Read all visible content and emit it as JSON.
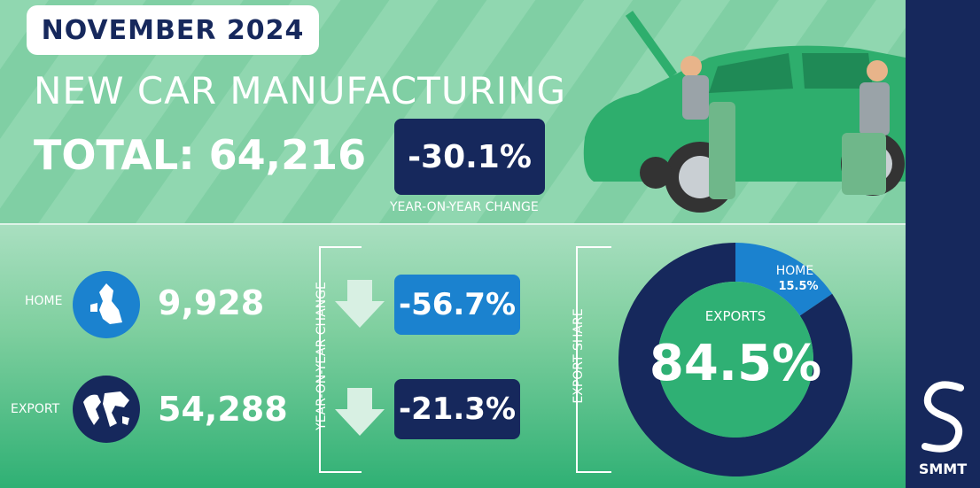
{
  "header": {
    "date_badge": "NOVEMBER 2024",
    "title": "NEW CAR MANUFACTURING",
    "total_text": "TOTAL: 64,216",
    "yoy_change": "-30.1%",
    "yoy_label": "YEAR-ON-YEAR CHANGE"
  },
  "rows": {
    "home": {
      "label": "HOME",
      "value": "9,928",
      "change": "-56.7%",
      "icon": "uk-map-icon"
    },
    "export": {
      "label": "EXPORT",
      "value": "54,288",
      "change": "-21.3%",
      "icon": "world-map-icon"
    }
  },
  "side_labels": {
    "yoy": "YEAR-ON-YEAR CHANGE",
    "export_share": "EXPORT SHARE"
  },
  "chart_data": {
    "type": "pie",
    "categories": [
      "HOME",
      "EXPORTS"
    ],
    "values": [
      15.5,
      84.5
    ],
    "labels": [
      "15.5%",
      "84.5%"
    ],
    "colors": [
      "#1b82cf",
      "#16285c"
    ]
  },
  "brand": {
    "name": "SMMT"
  },
  "colors": {
    "navy": "#16285c",
    "blue": "#1b82cf",
    "green": "#2fb074"
  }
}
